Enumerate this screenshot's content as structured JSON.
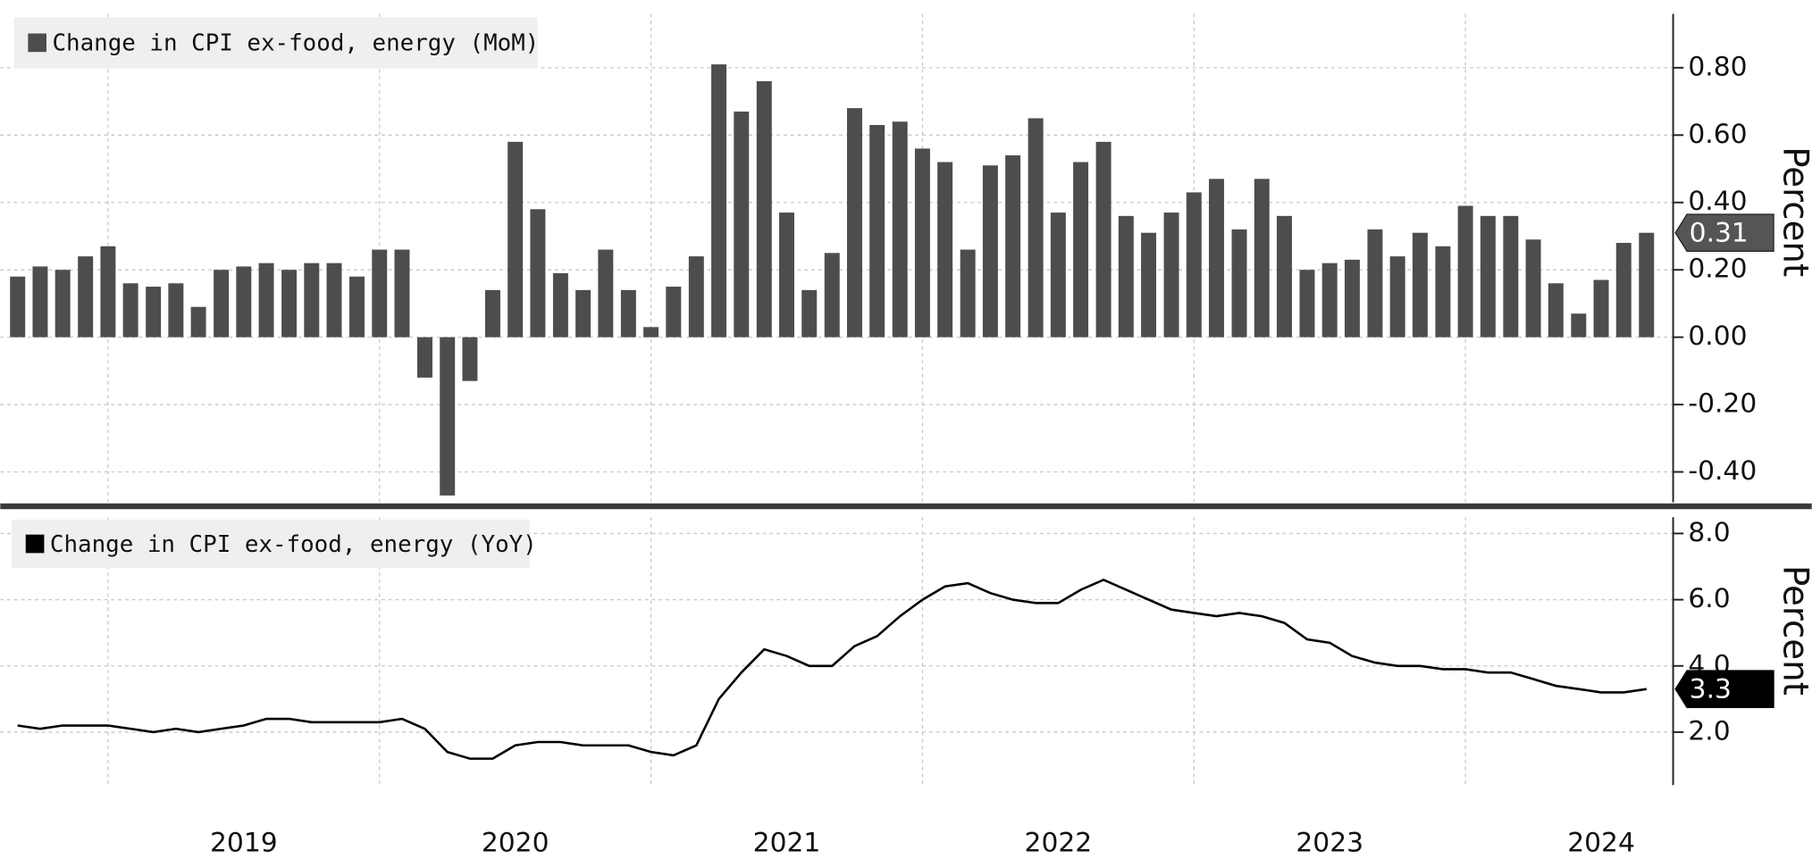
{
  "chart_data": [
    {
      "type": "bar",
      "series": [
        {
          "name": "Change in CPI ex-food, energy (MoM)",
          "color": "#4d4d4d",
          "values": [
            0.18,
            0.21,
            0.2,
            0.24,
            0.27,
            0.16,
            0.15,
            0.16,
            0.09,
            0.2,
            0.21,
            0.22,
            0.2,
            0.22,
            0.22,
            0.18,
            0.26,
            0.26,
            -0.12,
            -0.47,
            -0.13,
            0.14,
            0.58,
            0.38,
            0.19,
            0.14,
            0.26,
            0.14,
            0.03,
            0.15,
            0.24,
            0.81,
            0.67,
            0.76,
            0.37,
            0.14,
            0.25,
            0.68,
            0.63,
            0.64,
            0.56,
            0.52,
            0.26,
            0.51,
            0.54,
            0.65,
            0.37,
            0.52,
            0.58,
            0.36,
            0.31,
            0.37,
            0.43,
            0.47,
            0.32,
            0.47,
            0.36,
            0.2,
            0.22,
            0.23,
            0.32,
            0.24,
            0.31,
            0.27,
            0.39,
            0.36,
            0.36,
            0.29,
            0.16,
            0.07,
            0.17,
            0.28,
            0.31
          ]
        }
      ],
      "x": [
        2018.667,
        2018.75,
        2018.833,
        2018.917,
        2019,
        2019.083,
        2019.167,
        2019.25,
        2019.333,
        2019.417,
        2019.5,
        2019.583,
        2019.667,
        2019.75,
        2019.833,
        2019.917,
        2020,
        2020.083,
        2020.167,
        2020.25,
        2020.333,
        2020.417,
        2020.5,
        2020.583,
        2020.667,
        2020.75,
        2020.833,
        2020.917,
        2021,
        2021.083,
        2021.167,
        2021.25,
        2021.333,
        2021.417,
        2021.5,
        2021.583,
        2021.667,
        2021.75,
        2021.833,
        2021.917,
        2022,
        2022.083,
        2022.167,
        2022.25,
        2022.333,
        2022.417,
        2022.5,
        2022.583,
        2022.667,
        2022.75,
        2022.833,
        2022.917,
        2023,
        2023.083,
        2023.167,
        2023.25,
        2023.333,
        2023.417,
        2023.5,
        2023.583,
        2023.667,
        2023.75,
        2023.833,
        2023.917,
        2024,
        2024.083,
        2024.167,
        2024.25,
        2024.333,
        2024.417,
        2024.5,
        2024.583,
        2024.667
      ],
      "xlim": [
        2018.603,
        2024.765
      ],
      "xticks": [
        2019,
        2020,
        2021,
        2022,
        2023,
        2024
      ],
      "ylim": [
        -0.49,
        0.96
      ],
      "yticks": [
        {
          "value": -0.4,
          "label": "-0.40"
        },
        {
          "value": -0.2,
          "label": "-0.20"
        },
        {
          "value": 0,
          "label": "0.00"
        },
        {
          "value": 0.2,
          "label": "0.20"
        },
        {
          "value": 0.4,
          "label": "0.40"
        },
        {
          "value": 0.6,
          "label": "0.60"
        },
        {
          "value": 0.8,
          "label": "0.80"
        }
      ],
      "ylabel": "Percent",
      "grid": true
    },
    {
      "type": "line",
      "series": [
        {
          "name": "Change in CPI ex-food, energy (YoY)",
          "color": "#000000",
          "values": [
            2.2,
            2.1,
            2.2,
            2.2,
            2.2,
            2.1,
            2.0,
            2.1,
            2.0,
            2.1,
            2.2,
            2.4,
            2.4,
            2.3,
            2.3,
            2.3,
            2.3,
            2.4,
            2.1,
            1.4,
            1.2,
            1.2,
            1.6,
            1.7,
            1.7,
            1.6,
            1.6,
            1.6,
            1.4,
            1.3,
            1.6,
            3.0,
            3.8,
            4.5,
            4.3,
            4.0,
            4.0,
            4.6,
            4.9,
            5.5,
            6.0,
            6.4,
            6.5,
            6.2,
            6.0,
            5.9,
            5.9,
            6.3,
            6.6,
            6.3,
            6.0,
            5.7,
            5.6,
            5.5,
            5.6,
            5.5,
            5.3,
            4.8,
            4.7,
            4.3,
            4.1,
            4.0,
            4.0,
            3.9,
            3.9,
            3.8,
            3.8,
            3.6,
            3.4,
            3.3,
            3.2,
            3.2,
            3.3
          ]
        }
      ],
      "x": [
        2018.667,
        2018.75,
        2018.833,
        2018.917,
        2019,
        2019.083,
        2019.167,
        2019.25,
        2019.333,
        2019.417,
        2019.5,
        2019.583,
        2019.667,
        2019.75,
        2019.833,
        2019.917,
        2020,
        2020.083,
        2020.167,
        2020.25,
        2020.333,
        2020.417,
        2020.5,
        2020.583,
        2020.667,
        2020.75,
        2020.833,
        2020.917,
        2021,
        2021.083,
        2021.167,
        2021.25,
        2021.333,
        2021.417,
        2021.5,
        2021.583,
        2021.667,
        2021.75,
        2021.833,
        2021.917,
        2022,
        2022.083,
        2022.167,
        2022.25,
        2022.333,
        2022.417,
        2022.5,
        2022.583,
        2022.667,
        2022.75,
        2022.833,
        2022.917,
        2023,
        2023.083,
        2023.167,
        2023.25,
        2023.333,
        2023.417,
        2023.5,
        2023.583,
        2023.667,
        2023.75,
        2023.833,
        2023.917,
        2024,
        2024.083,
        2024.167,
        2024.25,
        2024.333,
        2024.417,
        2024.5,
        2024.583,
        2024.667
      ],
      "xlim": [
        2018.603,
        2024.765
      ],
      "xticks": [
        2019,
        2020,
        2021,
        2022,
        2023,
        2024
      ],
      "ylim": [
        0.4,
        8.49
      ],
      "yticks": [
        {
          "value": 2,
          "label": "2.0"
        },
        {
          "value": 4,
          "label": "4.0"
        },
        {
          "value": 6,
          "label": "6.0"
        },
        {
          "value": 8,
          "label": "8.0"
        }
      ],
      "ylabel": "Percent",
      "grid": true
    }
  ]
}
